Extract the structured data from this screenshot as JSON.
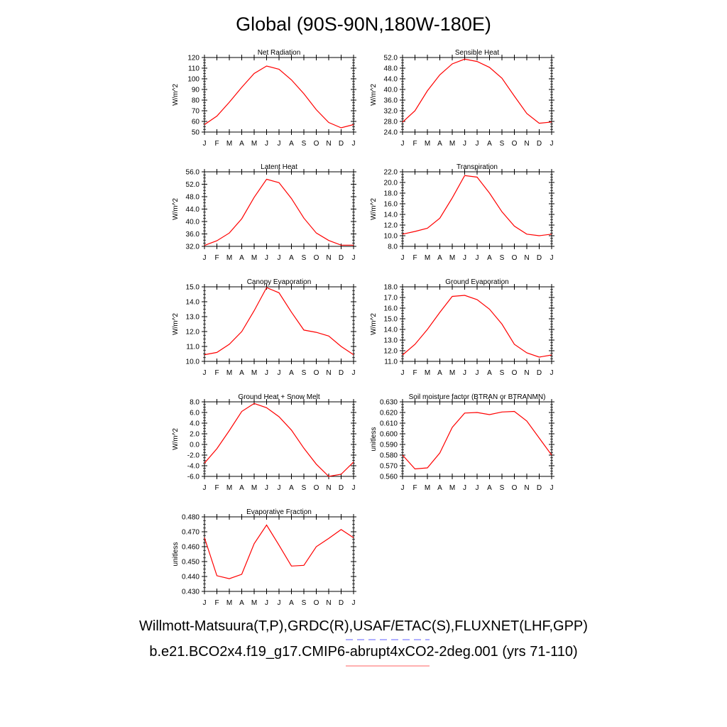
{
  "figure": {
    "title": "Global (90S-90N,180W-180E)",
    "legend": [
      {
        "label": "Willmott-Matsuura(T,P),GRDC(R),USAF/ETAC(S),FLUXNET(LHF,GPP)",
        "line_color": "#6060ff",
        "line_style": "dashed"
      },
      {
        "label": "b.e21.BCO2x4.f19_g17.CMIP6-abrupt4xCO2-2deg.001 (yrs 71-110)",
        "line_color": "#ff6060",
        "line_style": "solid"
      }
    ],
    "series_color": "#ff0000"
  },
  "chart_data": [
    {
      "type": "line",
      "title": "Net Radiation",
      "ylabel": "W/m^2",
      "xlabel": "",
      "categories": [
        "J",
        "F",
        "M",
        "A",
        "M",
        "J",
        "J",
        "A",
        "S",
        "O",
        "N",
        "D",
        "J"
      ],
      "ylim": [
        50,
        120
      ],
      "yticks": [
        "50",
        "60",
        "70",
        "80",
        "90",
        "100",
        "110",
        "120"
      ],
      "values": [
        57,
        65,
        78,
        92,
        105,
        112,
        109,
        99,
        86,
        71,
        59,
        54,
        57
      ]
    },
    {
      "type": "line",
      "title": "Sensible Heat",
      "ylabel": "W/m^2",
      "xlabel": "",
      "categories": [
        "J",
        "F",
        "M",
        "A",
        "M",
        "J",
        "J",
        "A",
        "S",
        "O",
        "N",
        "D",
        "J"
      ],
      "ylim": [
        24.0,
        52.0
      ],
      "yticks": [
        "24.0",
        "28.0",
        "32.0",
        "36.0",
        "40.0",
        "44.0",
        "48.0",
        "52.0"
      ],
      "values": [
        27.7,
        32.0,
        39.5,
        45.5,
        49.6,
        51.4,
        50.5,
        48.3,
        44.2,
        37.5,
        31.0,
        27.3,
        27.8
      ]
    },
    {
      "type": "line",
      "title": "Latent Heat",
      "ylabel": "W/m^2",
      "xlabel": "",
      "categories": [
        "J",
        "F",
        "M",
        "A",
        "M",
        "J",
        "J",
        "A",
        "S",
        "O",
        "N",
        "D",
        "J"
      ],
      "ylim": [
        32.0,
        56.0
      ],
      "yticks": [
        "32.0",
        "36.0",
        "40.0",
        "44.0",
        "48.0",
        "52.0",
        "56.0"
      ],
      "values": [
        32.3,
        33.8,
        36.3,
        40.9,
        47.8,
        53.6,
        52.5,
        47.4,
        41.1,
        36.3,
        33.9,
        32.4,
        32.4
      ]
    },
    {
      "type": "line",
      "title": "Transpiration",
      "ylabel": "W/m^2",
      "xlabel": "",
      "categories": [
        "J",
        "F",
        "M",
        "A",
        "M",
        "J",
        "J",
        "A",
        "S",
        "O",
        "N",
        "D",
        "J"
      ],
      "ylim": [
        8.0,
        22.0
      ],
      "yticks": [
        "8.0",
        "10.0",
        "12.0",
        "14.0",
        "16.0",
        "18.0",
        "20.0",
        "22.0"
      ],
      "values": [
        10.3,
        10.8,
        11.4,
        13.3,
        17.1,
        21.3,
        21.0,
        18.0,
        14.5,
        11.8,
        10.3,
        10.0,
        10.3
      ]
    },
    {
      "type": "line",
      "title": "Canopy Evaporation",
      "ylabel": "W/m^2",
      "xlabel": "",
      "categories": [
        "J",
        "F",
        "M",
        "A",
        "M",
        "J",
        "J",
        "A",
        "S",
        "O",
        "N",
        "D",
        "J"
      ],
      "ylim": [
        10.0,
        15.0
      ],
      "yticks": [
        "10.0",
        "11.0",
        "12.0",
        "13.0",
        "14.0",
        "15.0"
      ],
      "values": [
        10.45,
        10.6,
        11.15,
        12.0,
        13.4,
        14.95,
        14.6,
        13.3,
        12.1,
        11.95,
        11.7,
        11.0,
        10.45
      ]
    },
    {
      "type": "line",
      "title": "Ground Evaporation",
      "ylabel": "W/m^2",
      "xlabel": "",
      "categories": [
        "J",
        "F",
        "M",
        "A",
        "M",
        "J",
        "J",
        "A",
        "S",
        "O",
        "N",
        "D",
        "J"
      ],
      "ylim": [
        11.0,
        18.0
      ],
      "yticks": [
        "11.0",
        "12.0",
        "13.0",
        "14.0",
        "15.0",
        "16.0",
        "17.0",
        "18.0"
      ],
      "values": [
        11.6,
        12.6,
        14.0,
        15.6,
        17.1,
        17.2,
        16.8,
        15.9,
        14.5,
        12.6,
        11.8,
        11.4,
        11.6
      ]
    },
    {
      "type": "line",
      "title": "Ground Heat + Snow Melt",
      "ylabel": "W/m^2",
      "xlabel": "",
      "categories": [
        "J",
        "F",
        "M",
        "A",
        "M",
        "J",
        "J",
        "A",
        "S",
        "O",
        "N",
        "D",
        "J"
      ],
      "ylim": [
        -6.0,
        8.0
      ],
      "yticks": [
        "-6.0",
        "-4.0",
        "-2.0",
        "0.0",
        "2.0",
        "4.0",
        "6.0",
        "8.0"
      ],
      "values": [
        -3.5,
        -0.8,
        2.6,
        6.2,
        7.7,
        6.9,
        5.2,
        2.7,
        -0.7,
        -3.7,
        -6.0,
        -5.6,
        -3.3
      ]
    },
    {
      "type": "line",
      "title": "Soil moisture factor (BTRAN or BTRANMN)",
      "ylabel": "unitless",
      "xlabel": "",
      "categories": [
        "J",
        "F",
        "M",
        "A",
        "M",
        "J",
        "J",
        "A",
        "S",
        "O",
        "N",
        "D",
        "J"
      ],
      "ylim": [
        0.56,
        0.63
      ],
      "yticks": [
        "0.560",
        "0.570",
        "0.580",
        "0.590",
        "0.600",
        "0.610",
        "0.620",
        "0.630"
      ],
      "values": [
        0.58,
        0.567,
        0.568,
        0.582,
        0.606,
        0.6195,
        0.62,
        0.618,
        0.6205,
        0.621,
        0.612,
        0.596,
        0.58
      ]
    },
    {
      "type": "line",
      "title": "Evaporative Fraction",
      "ylabel": "unitless",
      "xlabel": "",
      "categories": [
        "J",
        "F",
        "M",
        "A",
        "M",
        "J",
        "J",
        "A",
        "S",
        "O",
        "N",
        "D",
        "J"
      ],
      "ylim": [
        0.43,
        0.48
      ],
      "yticks": [
        "0.430",
        "0.440",
        "0.450",
        "0.460",
        "0.470",
        "0.480"
      ],
      "values": [
        0.466,
        0.4405,
        0.4385,
        0.4415,
        0.462,
        0.4745,
        0.461,
        0.447,
        0.4475,
        0.46,
        0.4655,
        0.4715,
        0.466
      ]
    }
  ]
}
